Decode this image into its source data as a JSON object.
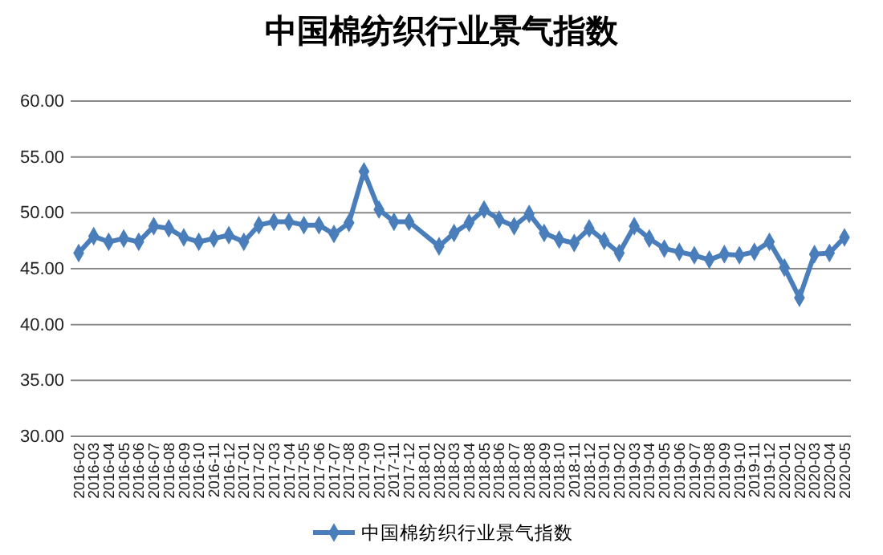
{
  "chart_data": {
    "type": "line",
    "title": "中国棉纺织行业景气指数",
    "categories": [
      "2016-02",
      "2016-03",
      "2016-04",
      "2016-05",
      "2016-06",
      "2016-07",
      "2016-08",
      "2016-09",
      "2016-10",
      "2016-11",
      "2016-12",
      "2017-01",
      "2017-02",
      "2017-03",
      "2017-04",
      "2017-05",
      "2017-06",
      "2017-07",
      "2017-08",
      "2017-09",
      "2017-10",
      "2017-11",
      "2017-12",
      "2018-01",
      "2018-02",
      "2018-03",
      "2018-04",
      "2018-05",
      "2018-06",
      "2018-07",
      "2018-08",
      "2018-09",
      "2018-10",
      "2018-11",
      "2018-12",
      "2019-01",
      "2019-02",
      "2019-03",
      "2019-04",
      "2019-05",
      "2019-06",
      "2019-07",
      "2019-08",
      "2019-09",
      "2019-10",
      "2019-11",
      "2019-12",
      "2020-01",
      "2020-02",
      "2020-03",
      "2020-04",
      "2020-05"
    ],
    "series": [
      {
        "name": "中国棉纺织行业景气指数",
        "color": "#4a7ebb",
        "values": [
          46.4,
          47.9,
          47.4,
          47.7,
          47.4,
          48.8,
          48.6,
          47.8,
          47.4,
          47.7,
          48.0,
          47.4,
          48.9,
          49.2,
          49.2,
          48.9,
          48.9,
          48.1,
          49.1,
          53.7,
          50.3,
          49.2,
          49.2,
          null,
          47.0,
          48.2,
          49.1,
          50.3,
          49.4,
          48.8,
          49.9,
          48.2,
          47.6,
          47.3,
          48.6,
          47.5,
          46.4,
          48.8,
          47.7,
          46.8,
          46.5,
          46.2,
          45.8,
          46.3,
          46.2,
          46.5,
          47.4,
          45.1,
          42.4,
          46.3,
          46.4,
          47.8
        ]
      }
    ],
    "ylim": [
      30,
      60
    ],
    "yticks": [
      {
        "value": 30,
        "label": "30.00"
      },
      {
        "value": 35,
        "label": "35.00"
      },
      {
        "value": 40,
        "label": "40.00"
      },
      {
        "value": 45,
        "label": "45.00"
      },
      {
        "value": 50,
        "label": "50.00"
      },
      {
        "value": 55,
        "label": "55.00"
      },
      {
        "value": 60,
        "label": "60.00"
      }
    ],
    "grid": "y",
    "legend": "bottom",
    "marker": "diamond",
    "line_style": "solid"
  }
}
